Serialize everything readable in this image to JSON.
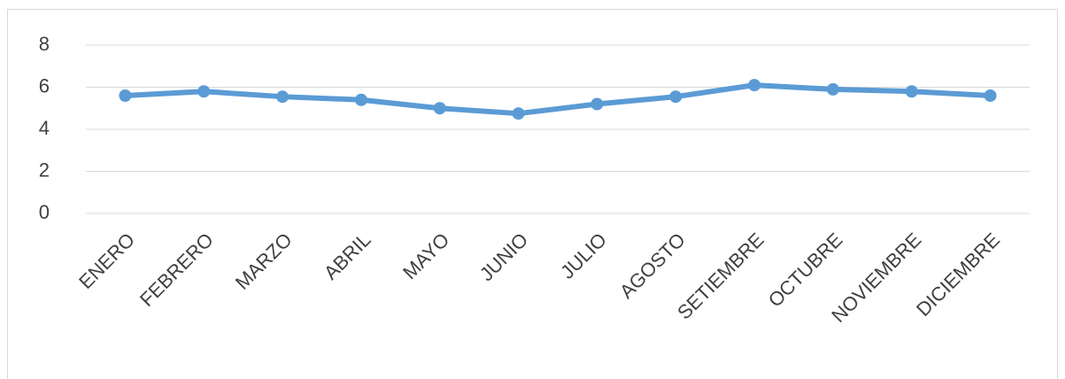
{
  "chart_data": {
    "type": "line",
    "categories": [
      "ENERO",
      "FEBRERO",
      "MARZO",
      "ABRIL",
      "MAYO",
      "JUNIO",
      "JULIO",
      "AGOSTO",
      "SETIEMBRE",
      "OCTUBRE",
      "NOVIEMBRE",
      "DICIEMBRE"
    ],
    "series": [
      {
        "color": "#5b9bd5",
        "values": [
          5.6,
          5.8,
          5.55,
          5.4,
          5.0,
          4.75,
          5.2,
          5.55,
          6.1,
          5.9,
          5.8,
          5.6
        ]
      }
    ],
    "ylim": [
      0,
      8
    ],
    "yticks": [
      0,
      2,
      4,
      6,
      8
    ],
    "grid": true
  }
}
